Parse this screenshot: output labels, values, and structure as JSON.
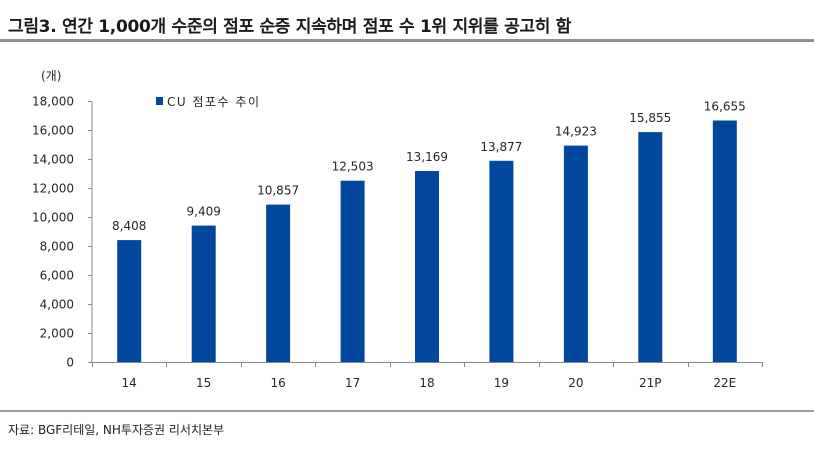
{
  "colors": {
    "bar": "#00479D",
    "axis": "#8a8a8a",
    "rule": "#8f8f8f"
  },
  "chart_data": {
    "type": "bar",
    "title": "그림3. 연간 1,000개 수준의 점포 순증 지속하며 점포 수 1위 지위를 공고히 함",
    "categories": [
      "14",
      "15",
      "16",
      "17",
      "18",
      "19",
      "20",
      "21P",
      "22E"
    ],
    "series": [
      {
        "name": "CU 점포수 추이",
        "values": [
          8408,
          9409,
          10857,
          12503,
          13169,
          13877,
          14923,
          15855,
          16655
        ]
      }
    ],
    "ylabel": "(개)",
    "ylim": [
      0,
      18000
    ],
    "yticks": [
      0,
      2000,
      4000,
      6000,
      8000,
      10000,
      12000,
      14000,
      16000,
      18000
    ],
    "data_labels": true,
    "grid": false,
    "legend": "top-left"
  },
  "source": "자료: BGF리테일, NH투자증권 리서치본부"
}
